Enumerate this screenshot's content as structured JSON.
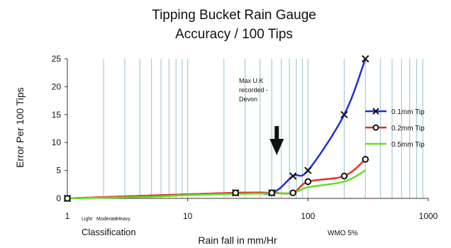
{
  "chart_data": {
    "type": "line",
    "title_lines": [
      "Tipping Bucket Rain Gauge",
      "Accuracy / 100 Tips"
    ],
    "xlabel": "Rain fall in mm/Hr",
    "ylabel": "Error Per 100 Tips",
    "x_scale": "log",
    "xlim": [
      1,
      1000
    ],
    "ylim": [
      0,
      25
    ],
    "x_ticks": [
      1,
      10,
      100,
      1000
    ],
    "x_tick_labels": [
      "1",
      "10",
      "100",
      "1000"
    ],
    "y_ticks": [
      0,
      5,
      10,
      15,
      20,
      25
    ],
    "y_tick_labels": [
      "0",
      "5",
      "10",
      "15",
      "20",
      "25"
    ],
    "grid": "vertical log grid lines",
    "grid_color": "#a6cdd9",
    "legend_position": "right",
    "series": [
      {
        "name": "0.1mm Tip",
        "color": "#1f2fd8",
        "marker": "x",
        "x": [
          1,
          25,
          50,
          75,
          100,
          200,
          300
        ],
        "y": [
          0,
          1,
          1,
          4,
          5,
          15,
          25
        ],
        "marker_x": [
          1,
          25,
          50,
          75,
          100,
          200,
          300
        ],
        "marker_y": [
          0,
          1,
          1,
          4,
          5,
          15,
          25
        ]
      },
      {
        "name": "0.2mm Tip",
        "color": "#e83020",
        "marker": "circle",
        "x": [
          1,
          25,
          50,
          75,
          100,
          200,
          300
        ],
        "y": [
          0,
          1,
          1,
          1,
          3,
          4,
          7
        ],
        "marker_x": [
          1,
          25,
          50,
          75,
          100,
          200,
          300
        ],
        "marker_y": [
          0,
          1,
          1,
          1,
          3,
          4,
          7
        ]
      },
      {
        "name": "0.5mm Tip",
        "color": "#66dd22",
        "marker": "none",
        "x": [
          1,
          5,
          10,
          25,
          50,
          75,
          100,
          200,
          300
        ],
        "y": [
          0,
          0.3,
          0.6,
          0.8,
          0.9,
          1,
          2,
          3,
          5
        ]
      }
    ],
    "annotations": {
      "max_uk_lines": [
        "Max U.K",
        "recorded -",
        "Devon"
      ],
      "max_uk_arrow_x": 55,
      "classification_small": [
        "Light",
        "Moderate",
        "Heavy"
      ],
      "classification_label": "Classification",
      "wmo_label": "WMO 5%"
    }
  }
}
